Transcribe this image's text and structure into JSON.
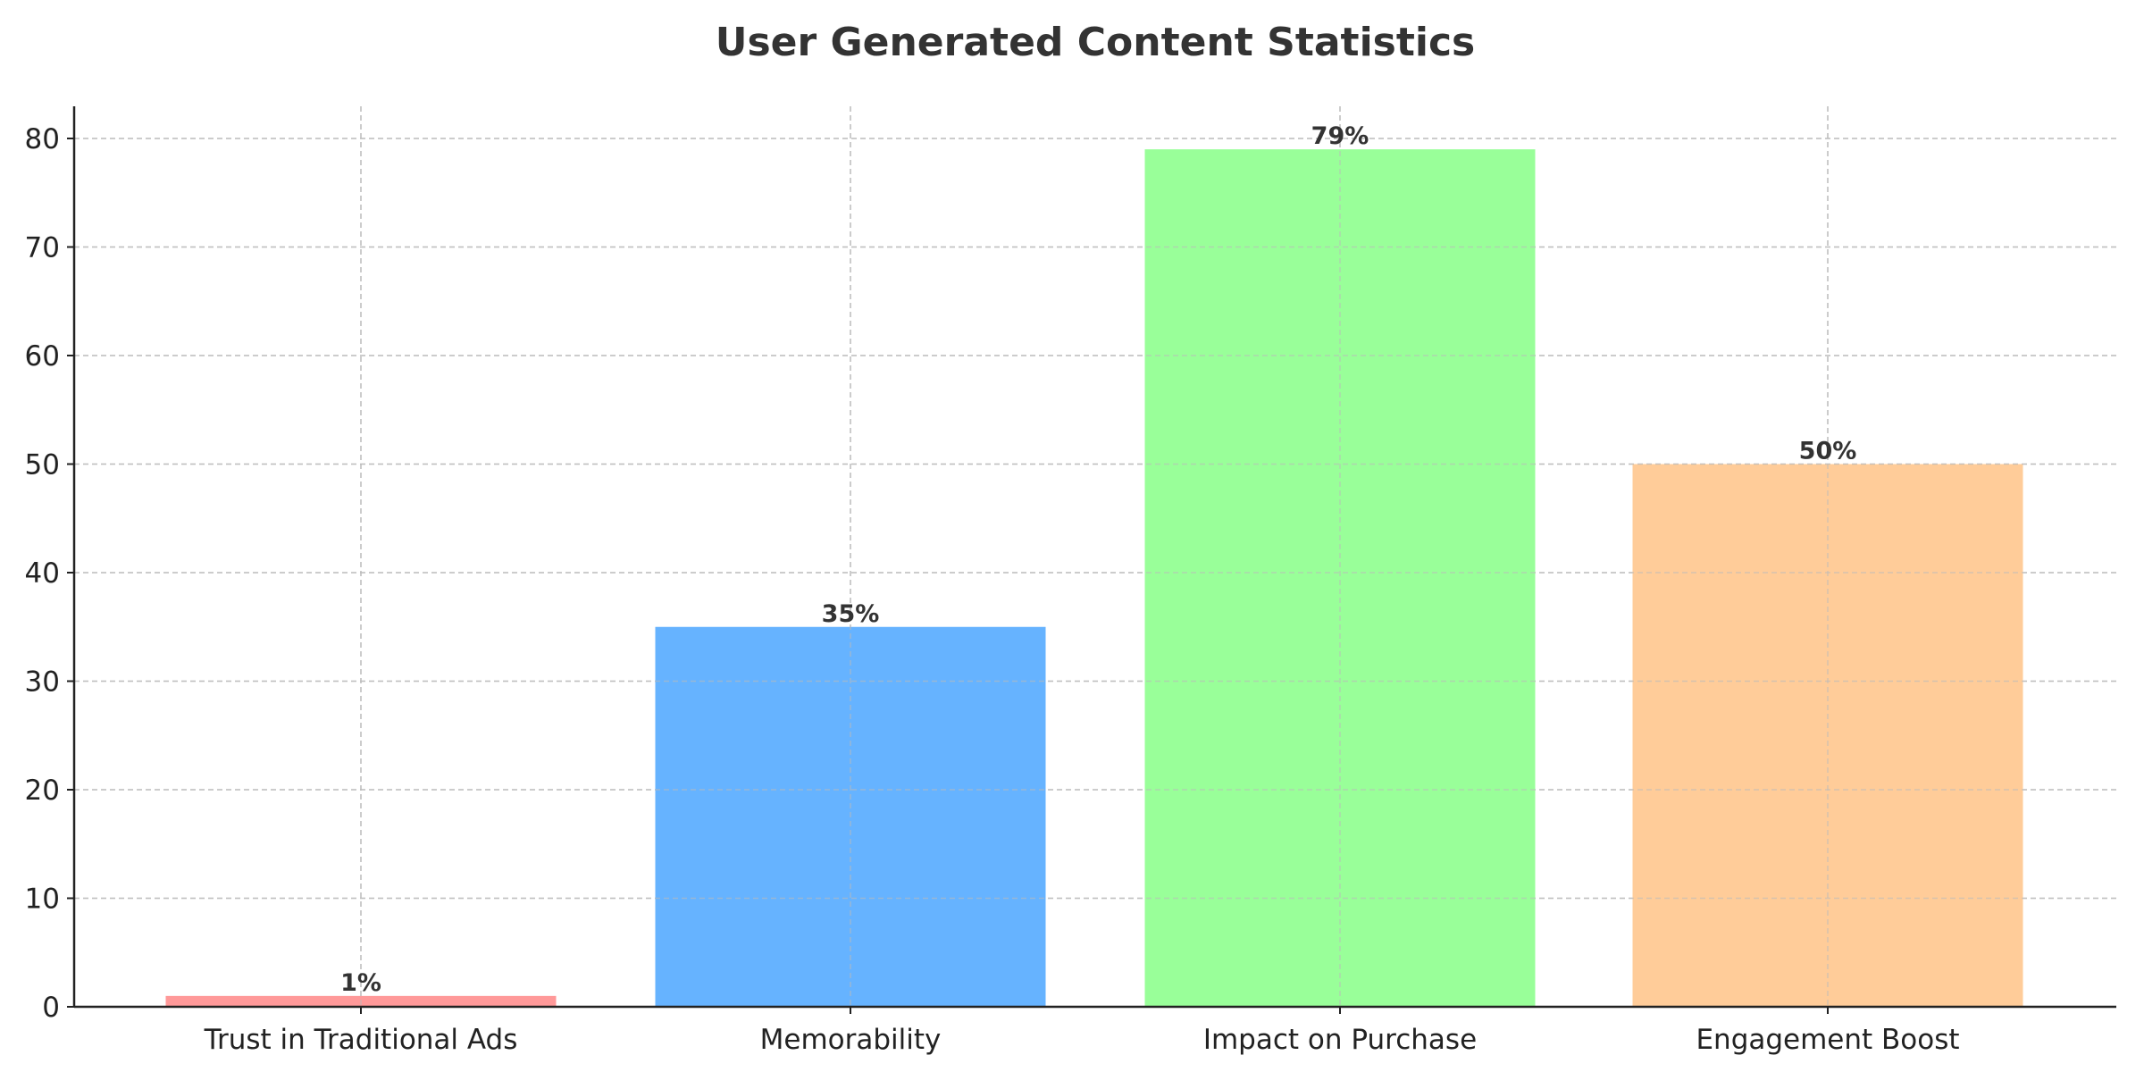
{
  "chart_data": {
    "type": "bar",
    "title": "User Generated Content Statistics",
    "xlabel": "",
    "ylabel": "",
    "categories": [
      "Trust in Traditional Ads",
      "Memorability",
      "Impact on Purchase",
      "Engagement Boost"
    ],
    "values": [
      1,
      35,
      79,
      50
    ],
    "data_labels": [
      "1%",
      "35%",
      "79%",
      "50%"
    ],
    "colors": [
      "#ff9999",
      "#66b3ff",
      "#99ff99",
      "#ffcc99"
    ],
    "ylim": [
      0,
      83
    ],
    "yticks": [
      0,
      10,
      20,
      30,
      40,
      50,
      60,
      70,
      80
    ],
    "grid": true,
    "legend": "none"
  }
}
